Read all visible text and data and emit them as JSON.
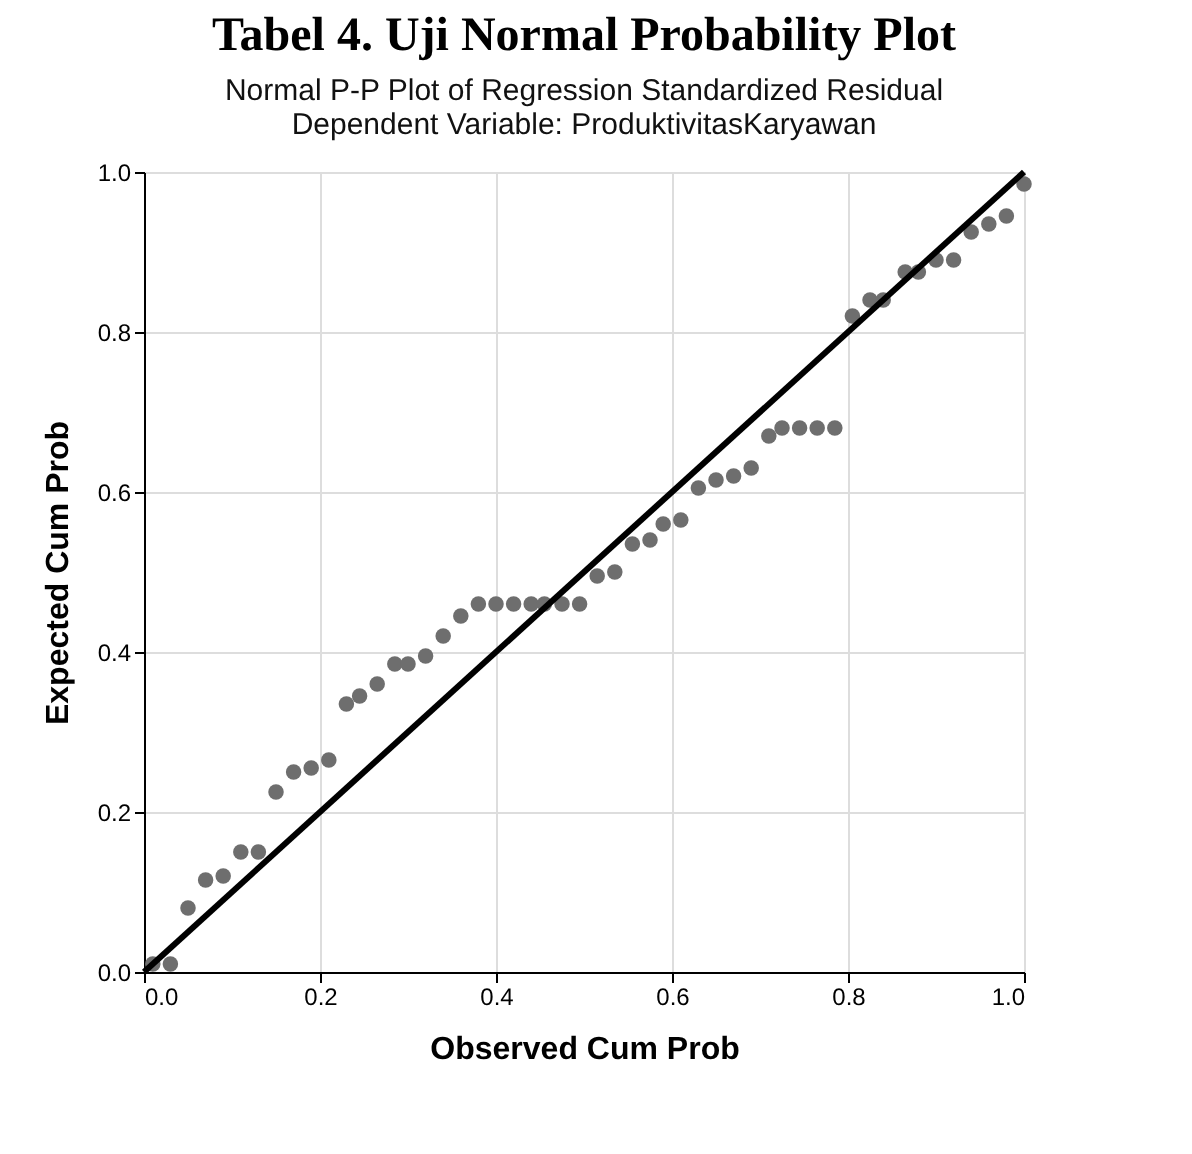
{
  "chart_data": {
    "type": "scatter",
    "title": "Tabel 4. Uji Normal Probability Plot",
    "subtitle": [
      "Normal P-P Plot of Regression Standardized Residual",
      "Dependent Variable: ProduktivitasKaryawan"
    ],
    "xlabel": "Observed Cum Prob",
    "ylabel": "Expected Cum Prob",
    "xlim": [
      0,
      1
    ],
    "ylim": [
      0,
      1
    ],
    "xticks": [
      {
        "value": 0,
        "label": "0.0"
      },
      0.2,
      0.4,
      0.6,
      0.8,
      {
        "value": 1,
        "label": "1.0"
      }
    ],
    "yticks": [
      {
        "value": 0,
        "label": "0.0"
      },
      0.2,
      0.4,
      0.6,
      0.8,
      {
        "value": 1,
        "label": "1.0"
      }
    ],
    "grid": true,
    "marker": "circle",
    "series": [
      {
        "color": "#6e6e6e",
        "x": [
          0.01,
          0.03,
          0.05,
          0.07,
          0.09,
          0.11,
          0.13,
          0.15,
          0.17,
          0.19,
          0.21,
          0.23,
          0.245,
          0.265,
          0.285,
          0.3,
          0.32,
          0.34,
          0.36,
          0.38,
          0.4,
          0.42,
          0.44,
          0.455,
          0.475,
          0.495,
          0.515,
          0.535,
          0.555,
          0.575,
          0.59,
          0.61,
          0.63,
          0.65,
          0.67,
          0.69,
          0.71,
          0.725,
          0.745,
          0.765,
          0.785,
          0.805,
          0.825,
          0.84,
          0.865,
          0.88,
          0.9,
          0.92,
          0.94,
          0.96,
          0.98,
          1.0
        ],
        "values": [
          0.01,
          0.01,
          0.08,
          0.115,
          0.12,
          0.15,
          0.15,
          0.225,
          0.25,
          0.255,
          0.265,
          0.335,
          0.345,
          0.36,
          0.385,
          0.385,
          0.395,
          0.42,
          0.445,
          0.46,
          0.46,
          0.46,
          0.46,
          0.46,
          0.46,
          0.46,
          0.495,
          0.5,
          0.535,
          0.54,
          0.56,
          0.565,
          0.605,
          0.615,
          0.62,
          0.63,
          0.67,
          0.68,
          0.68,
          0.68,
          0.68,
          0.82,
          0.84,
          0.84,
          0.875,
          0.875,
          0.89,
          0.89,
          0.925,
          0.935,
          0.945,
          0.985
        ]
      },
      {
        "type": "line",
        "color": "#000000",
        "line_style": "solid",
        "marker": "none",
        "x": [
          0,
          1
        ],
        "values": [
          0,
          1
        ]
      }
    ]
  }
}
